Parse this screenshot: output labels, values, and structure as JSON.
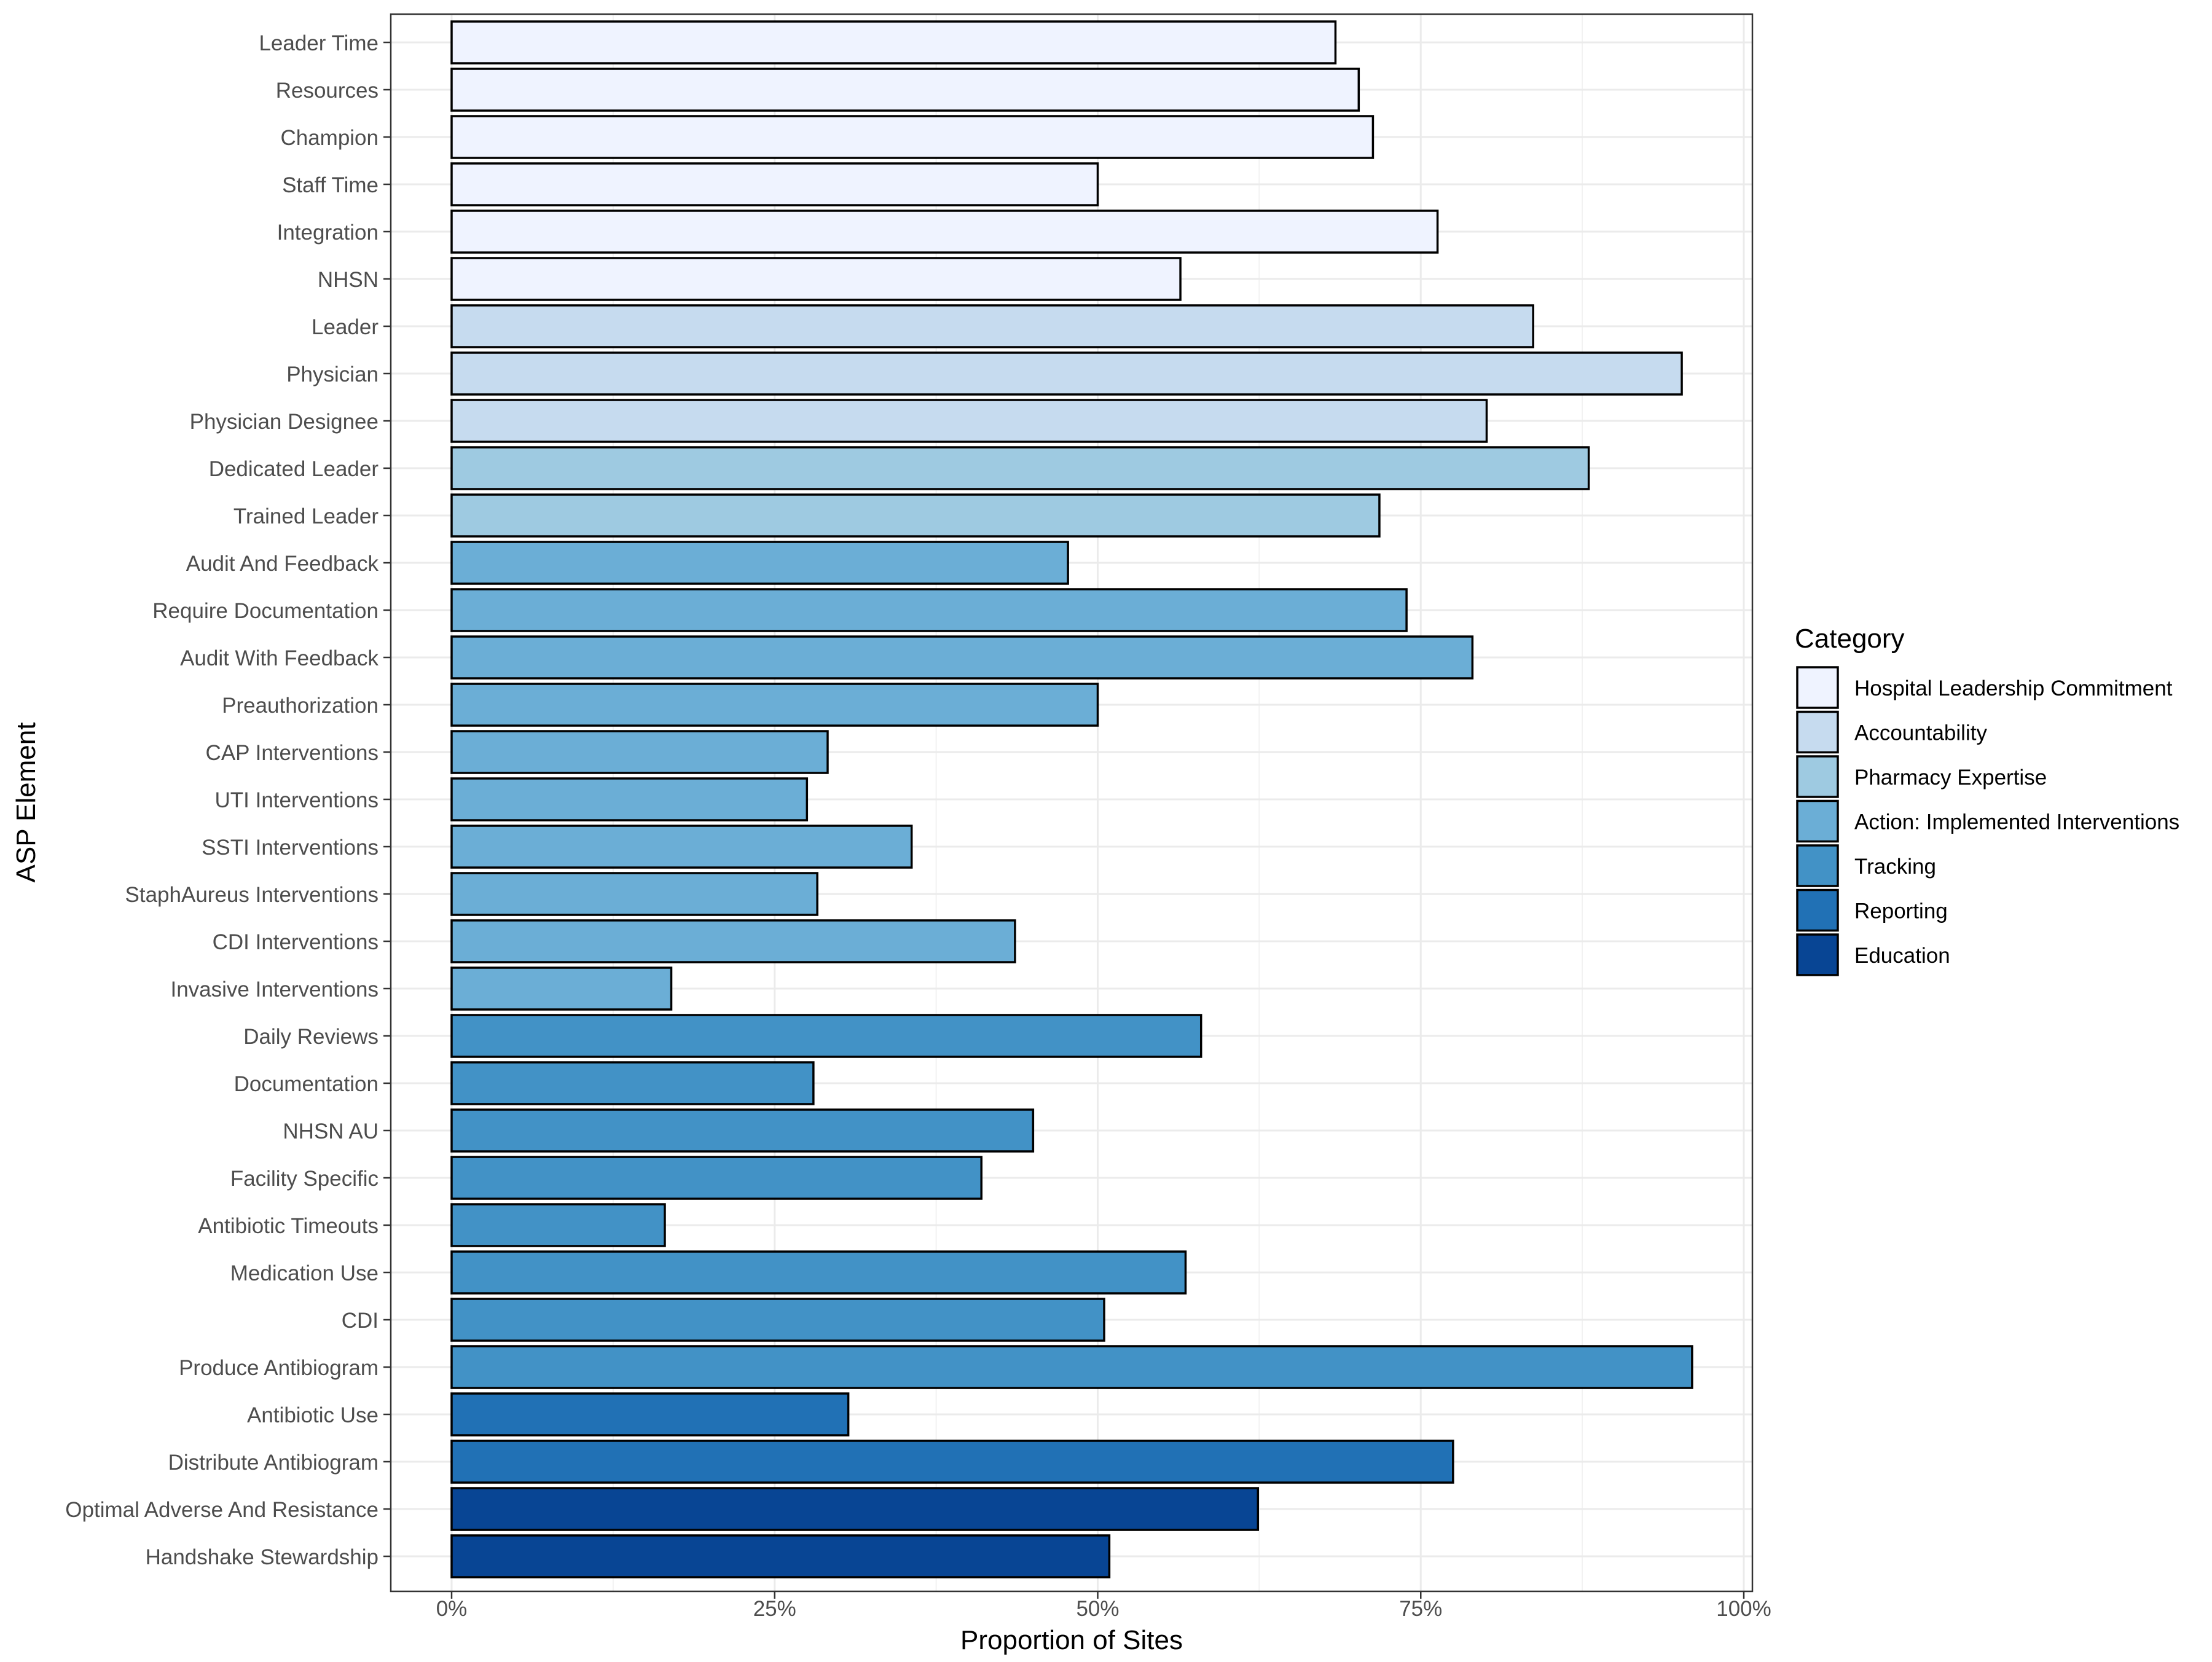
{
  "chart_data": {
    "type": "bar",
    "orientation": "horizontal",
    "xlabel": "Proportion of Sites",
    "ylabel": "ASP Element",
    "xlim": [
      0,
      1
    ],
    "xticks": [
      0,
      0.25,
      0.5,
      0.75,
      1.0
    ],
    "xtick_labels": [
      "0%",
      "25%",
      "50%",
      "75%",
      "100%"
    ],
    "grid": true,
    "legend": {
      "title": "Category",
      "placement": "right",
      "entries": [
        {
          "name": "Hospital Leadership Commitment",
          "color": "#EFF3FF"
        },
        {
          "name": "Accountability",
          "color": "#C6DBEF"
        },
        {
          "name": "Pharmacy Expertise",
          "color": "#9ECAE1"
        },
        {
          "name": "Action: Implemented Interventions",
          "color": "#6BAED6"
        },
        {
          "name": "Tracking",
          "color": "#4292C6"
        },
        {
          "name": "Reporting",
          "color": "#2171B5"
        },
        {
          "name": "Education",
          "color": "#084594"
        }
      ]
    },
    "bars": [
      {
        "label": "Leader Time",
        "value": 0.684,
        "category": 0
      },
      {
        "label": "Resources",
        "value": 0.702,
        "category": 0
      },
      {
        "label": "Champion",
        "value": 0.713,
        "category": 0
      },
      {
        "label": "Staff Time",
        "value": 0.5,
        "category": 0
      },
      {
        "label": "Integration",
        "value": 0.763,
        "category": 0
      },
      {
        "label": "NHSN",
        "value": 0.564,
        "category": 0
      },
      {
        "label": "Leader",
        "value": 0.837,
        "category": 1
      },
      {
        "label": "Physician",
        "value": 0.952,
        "category": 1
      },
      {
        "label": "Physician Designee",
        "value": 0.801,
        "category": 1
      },
      {
        "label": "Dedicated Leader",
        "value": 0.88,
        "category": 2
      },
      {
        "label": "Trained Leader",
        "value": 0.718,
        "category": 2
      },
      {
        "label": "Audit And Feedback",
        "value": 0.477,
        "category": 3
      },
      {
        "label": "Require Documentation",
        "value": 0.739,
        "category": 3
      },
      {
        "label": "Audit With Feedback",
        "value": 0.79,
        "category": 3
      },
      {
        "label": "Preauthorization",
        "value": 0.5,
        "category": 3
      },
      {
        "label": "CAP Interventions",
        "value": 0.291,
        "category": 3
      },
      {
        "label": "UTI Interventions",
        "value": 0.275,
        "category": 3
      },
      {
        "label": "SSTI Interventions",
        "value": 0.356,
        "category": 3
      },
      {
        "label": "StaphAureus Interventions",
        "value": 0.283,
        "category": 3
      },
      {
        "label": "CDI Interventions",
        "value": 0.436,
        "category": 3
      },
      {
        "label": "Invasive Interventions",
        "value": 0.17,
        "category": 3
      },
      {
        "label": "Daily Reviews",
        "value": 0.58,
        "category": 4
      },
      {
        "label": "Documentation",
        "value": 0.28,
        "category": 4
      },
      {
        "label": "NHSN AU",
        "value": 0.45,
        "category": 4
      },
      {
        "label": "Facility Specific",
        "value": 0.41,
        "category": 4
      },
      {
        "label": "Antibiotic Timeouts",
        "value": 0.165,
        "category": 4
      },
      {
        "label": "Medication Use",
        "value": 0.568,
        "category": 4
      },
      {
        "label": "CDI",
        "value": 0.505,
        "category": 4
      },
      {
        "label": "Produce Antibiogram",
        "value": 0.96,
        "category": 4
      },
      {
        "label": "Antibiotic Use",
        "value": 0.307,
        "category": 5
      },
      {
        "label": "Distribute Antibiogram",
        "value": 0.775,
        "category": 5
      },
      {
        "label": "Optimal Adverse And Resistance",
        "value": 0.624,
        "category": 6
      },
      {
        "label": "Handshake Stewardship",
        "value": 0.509,
        "category": 6
      }
    ]
  }
}
